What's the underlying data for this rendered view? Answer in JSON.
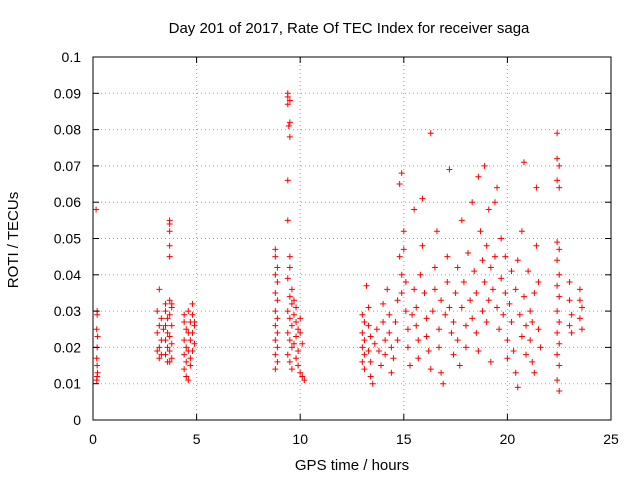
{
  "chart_data": {
    "type": "scatter",
    "title": "Day 201 of 2017, Rate Of TEC Index for receiver saga",
    "xlabel": "GPS time / hours",
    "ylabel": "ROTI / TECUs",
    "xlim": [
      0,
      25
    ],
    "ylim": [
      0,
      0.1
    ],
    "x_ticks": [
      0,
      5,
      10,
      15,
      20,
      25
    ],
    "x_tick_labels": [
      "0",
      "5",
      "10",
      "15",
      "20",
      "25"
    ],
    "y_ticks": [
      0,
      0.01,
      0.02,
      0.03,
      0.04,
      0.05,
      0.06,
      0.07,
      0.08,
      0.09,
      0.1
    ],
    "y_tick_labels": [
      "0",
      "0.01",
      "0.02",
      "0.03",
      "0.04",
      "0.05",
      "0.06",
      "0.07",
      "0.08",
      "0.09",
      "0.1"
    ],
    "grid": true,
    "marker": "+",
    "color": "#ff0000",
    "series": [
      {
        "points": [
          [
            0.15,
            0.058
          ],
          [
            0.2,
            0.03
          ],
          [
            0.2,
            0.029
          ],
          [
            0.18,
            0.025
          ],
          [
            0.22,
            0.023
          ],
          [
            0.2,
            0.02
          ],
          [
            0.18,
            0.017
          ],
          [
            0.2,
            0.015
          ],
          [
            0.22,
            0.013
          ],
          [
            0.2,
            0.012
          ],
          [
            0.18,
            0.011
          ],
          [
            3.2,
            0.036
          ],
          [
            3.1,
            0.03
          ],
          [
            3.3,
            0.028
          ],
          [
            3.2,
            0.026
          ],
          [
            3.1,
            0.024
          ],
          [
            3.3,
            0.022
          ],
          [
            3.2,
            0.02
          ],
          [
            3.1,
            0.019
          ],
          [
            3.3,
            0.018
          ],
          [
            3.2,
            0.017
          ],
          [
            3.4,
            0.025
          ],
          [
            3.5,
            0.032
          ],
          [
            3.5,
            0.03
          ],
          [
            3.6,
            0.028
          ],
          [
            3.5,
            0.026
          ],
          [
            3.6,
            0.024
          ],
          [
            3.5,
            0.022
          ],
          [
            3.6,
            0.02
          ],
          [
            3.5,
            0.018
          ],
          [
            3.6,
            0.016
          ],
          [
            3.7,
            0.055
          ],
          [
            3.7,
            0.054
          ],
          [
            3.7,
            0.052
          ],
          [
            3.7,
            0.048
          ],
          [
            3.7,
            0.045
          ],
          [
            3.7,
            0.033
          ],
          [
            3.8,
            0.031
          ],
          [
            3.7,
            0.029
          ],
          [
            3.8,
            0.026
          ],
          [
            3.7,
            0.023
          ],
          [
            3.8,
            0.021
          ],
          [
            3.7,
            0.019
          ],
          [
            3.8,
            0.017
          ],
          [
            3.7,
            0.016
          ],
          [
            3.8,
            0.032
          ],
          [
            4.4,
            0.029
          ],
          [
            4.4,
            0.027
          ],
          [
            4.5,
            0.025
          ],
          [
            4.4,
            0.022
          ],
          [
            4.5,
            0.02
          ],
          [
            4.4,
            0.018
          ],
          [
            4.5,
            0.016
          ],
          [
            4.4,
            0.014
          ],
          [
            4.5,
            0.012
          ],
          [
            4.6,
            0.03
          ],
          [
            4.7,
            0.027
          ],
          [
            4.6,
            0.024
          ],
          [
            4.7,
            0.022
          ],
          [
            4.6,
            0.019
          ],
          [
            4.7,
            0.017
          ],
          [
            4.8,
            0.032
          ],
          [
            4.8,
            0.029
          ],
          [
            4.9,
            0.027
          ],
          [
            4.8,
            0.024
          ],
          [
            4.9,
            0.021
          ],
          [
            4.8,
            0.019
          ],
          [
            4.9,
            0.026
          ],
          [
            4.7,
            0.015
          ],
          [
            4.6,
            0.011
          ],
          [
            8.8,
            0.047
          ],
          [
            8.8,
            0.045
          ],
          [
            8.9,
            0.042
          ],
          [
            8.8,
            0.04
          ],
          [
            8.9,
            0.038
          ],
          [
            8.8,
            0.035
          ],
          [
            8.9,
            0.033
          ],
          [
            8.8,
            0.03
          ],
          [
            8.9,
            0.028
          ],
          [
            8.8,
            0.026
          ],
          [
            8.9,
            0.024
          ],
          [
            8.8,
            0.022
          ],
          [
            8.9,
            0.02
          ],
          [
            8.8,
            0.018
          ],
          [
            8.9,
            0.016
          ],
          [
            8.8,
            0.014
          ],
          [
            9.4,
            0.09
          ],
          [
            9.4,
            0.089
          ],
          [
            9.5,
            0.088
          ],
          [
            9.4,
            0.087
          ],
          [
            9.5,
            0.082
          ],
          [
            9.45,
            0.081
          ],
          [
            9.5,
            0.078
          ],
          [
            9.4,
            0.066
          ],
          [
            9.4,
            0.055
          ],
          [
            9.5,
            0.045
          ],
          [
            9.5,
            0.042
          ],
          [
            9.4,
            0.039
          ],
          [
            9.6,
            0.036
          ],
          [
            9.5,
            0.034
          ],
          [
            9.6,
            0.032
          ],
          [
            9.4,
            0.03
          ],
          [
            9.5,
            0.028
          ],
          [
            9.6,
            0.026
          ],
          [
            9.4,
            0.024
          ],
          [
            9.5,
            0.022
          ],
          [
            9.6,
            0.02
          ],
          [
            9.4,
            0.018
          ],
          [
            9.5,
            0.016
          ],
          [
            9.6,
            0.014
          ],
          [
            9.7,
            0.033
          ],
          [
            9.8,
            0.031
          ],
          [
            9.7,
            0.029
          ],
          [
            9.8,
            0.027
          ],
          [
            9.9,
            0.025
          ],
          [
            9.8,
            0.023
          ],
          [
            9.7,
            0.021
          ],
          [
            9.9,
            0.019
          ],
          [
            9.8,
            0.017
          ],
          [
            9.9,
            0.015
          ],
          [
            10.0,
            0.028
          ],
          [
            10.0,
            0.024
          ],
          [
            10.1,
            0.021
          ],
          [
            10.0,
            0.013
          ],
          [
            10.1,
            0.012
          ],
          [
            10.2,
            0.011
          ],
          [
            13.0,
            0.029
          ],
          [
            13.1,
            0.027
          ],
          [
            13.0,
            0.024
          ],
          [
            13.1,
            0.022
          ],
          [
            13.0,
            0.02
          ],
          [
            13.1,
            0.018
          ],
          [
            13.0,
            0.016
          ],
          [
            13.1,
            0.014
          ],
          [
            13.2,
            0.037
          ],
          [
            13.3,
            0.031
          ],
          [
            13.3,
            0.026
          ],
          [
            13.4,
            0.023
          ],
          [
            13.3,
            0.019
          ],
          [
            13.4,
            0.016
          ],
          [
            13.4,
            0.012
          ],
          [
            13.5,
            0.01
          ],
          [
            13.6,
            0.021
          ],
          [
            13.7,
            0.025
          ],
          [
            13.8,
            0.019
          ],
          [
            13.9,
            0.015
          ],
          [
            14.0,
            0.032
          ],
          [
            14.0,
            0.027
          ],
          [
            14.1,
            0.022
          ],
          [
            14.1,
            0.018
          ],
          [
            14.2,
            0.036
          ],
          [
            14.3,
            0.029
          ],
          [
            14.3,
            0.024
          ],
          [
            14.4,
            0.02
          ],
          [
            14.4,
            0.013
          ],
          [
            14.5,
            0.017
          ],
          [
            14.6,
            0.027
          ],
          [
            14.7,
            0.033
          ],
          [
            14.7,
            0.022
          ],
          [
            14.8,
            0.045
          ],
          [
            14.9,
            0.04
          ],
          [
            14.9,
            0.035
          ],
          [
            14.8,
            0.065
          ],
          [
            14.9,
            0.068
          ],
          [
            15.0,
            0.052
          ],
          [
            15.0,
            0.047
          ],
          [
            15.1,
            0.038
          ],
          [
            15.1,
            0.03
          ],
          [
            15.2,
            0.025
          ],
          [
            15.2,
            0.02
          ],
          [
            15.3,
            0.015
          ],
          [
            15.4,
            0.029
          ],
          [
            15.5,
            0.058
          ],
          [
            15.5,
            0.036
          ],
          [
            15.6,
            0.031
          ],
          [
            15.6,
            0.026
          ],
          [
            15.7,
            0.022
          ],
          [
            15.7,
            0.017
          ],
          [
            15.8,
            0.04
          ],
          [
            15.9,
            0.061
          ],
          [
            15.9,
            0.048
          ],
          [
            16.0,
            0.035
          ],
          [
            16.1,
            0.028
          ],
          [
            16.1,
            0.023
          ],
          [
            16.2,
            0.019
          ],
          [
            16.3,
            0.079
          ],
          [
            16.3,
            0.014
          ],
          [
            16.4,
            0.03
          ],
          [
            16.5,
            0.042
          ],
          [
            16.5,
            0.036
          ],
          [
            16.6,
            0.052
          ],
          [
            16.7,
            0.025
          ],
          [
            16.7,
            0.02
          ],
          [
            16.8,
            0.033
          ],
          [
            16.8,
            0.013
          ],
          [
            16.9,
            0.01
          ],
          [
            17.0,
            0.029
          ],
          [
            17.1,
            0.045
          ],
          [
            17.1,
            0.038
          ],
          [
            17.2,
            0.069
          ],
          [
            17.2,
            0.031
          ],
          [
            17.3,
            0.024
          ],
          [
            17.4,
            0.018
          ],
          [
            17.4,
            0.027
          ],
          [
            17.5,
            0.035
          ],
          [
            17.6,
            0.042
          ],
          [
            17.6,
            0.022
          ],
          [
            17.7,
            0.015
          ],
          [
            17.8,
            0.031
          ],
          [
            17.8,
            0.055
          ],
          [
            17.9,
            0.038
          ],
          [
            18.0,
            0.026
          ],
          [
            18.0,
            0.02
          ],
          [
            18.1,
            0.046
          ],
          [
            18.2,
            0.033
          ],
          [
            18.3,
            0.028
          ],
          [
            18.3,
            0.06
          ],
          [
            18.4,
            0.041
          ],
          [
            18.5,
            0.035
          ],
          [
            18.5,
            0.024
          ],
          [
            18.6,
            0.067
          ],
          [
            18.6,
            0.019
          ],
          [
            18.7,
            0.052
          ],
          [
            18.8,
            0.044
          ],
          [
            18.8,
            0.03
          ],
          [
            18.9,
            0.07
          ],
          [
            18.9,
            0.038
          ],
          [
            19.0,
            0.048
          ],
          [
            19.0,
            0.027
          ],
          [
            19.1,
            0.058
          ],
          [
            19.1,
            0.033
          ],
          [
            19.2,
            0.042
          ],
          [
            19.2,
            0.016
          ],
          [
            19.3,
            0.036
          ],
          [
            19.4,
            0.06
          ],
          [
            19.4,
            0.045
          ],
          [
            19.5,
            0.031
          ],
          [
            19.5,
            0.064
          ],
          [
            19.6,
            0.025
          ],
          [
            19.7,
            0.05
          ],
          [
            19.7,
            0.039
          ],
          [
            19.8,
            0.029
          ],
          [
            19.9,
            0.045
          ],
          [
            19.9,
            0.035
          ],
          [
            20.0,
            0.022
          ],
          [
            20.0,
            0.017
          ],
          [
            20.1,
            0.032
          ],
          [
            20.2,
            0.041
          ],
          [
            20.2,
            0.027
          ],
          [
            20.3,
            0.019
          ],
          [
            20.4,
            0.036
          ],
          [
            20.4,
            0.013
          ],
          [
            20.5,
            0.009
          ],
          [
            20.5,
            0.044
          ],
          [
            20.6,
            0.029
          ],
          [
            20.7,
            0.052
          ],
          [
            20.7,
            0.023
          ],
          [
            20.8,
            0.071
          ],
          [
            20.8,
            0.034
          ],
          [
            20.9,
            0.026
          ],
          [
            20.9,
            0.018
          ],
          [
            21.0,
            0.041
          ],
          [
            21.1,
            0.03
          ],
          [
            21.1,
            0.022
          ],
          [
            21.2,
            0.027
          ],
          [
            21.2,
            0.016
          ],
          [
            21.3,
            0.035
          ],
          [
            21.3,
            0.013
          ],
          [
            21.4,
            0.064
          ],
          [
            21.4,
            0.048
          ],
          [
            21.5,
            0.038
          ],
          [
            21.5,
            0.025
          ],
          [
            21.6,
            0.02
          ],
          [
            22.4,
            0.079
          ],
          [
            22.4,
            0.072
          ],
          [
            22.5,
            0.07
          ],
          [
            22.4,
            0.066
          ],
          [
            22.5,
            0.064
          ],
          [
            22.4,
            0.049
          ],
          [
            22.5,
            0.047
          ],
          [
            22.4,
            0.044
          ],
          [
            22.5,
            0.04
          ],
          [
            22.4,
            0.037
          ],
          [
            22.5,
            0.034
          ],
          [
            22.4,
            0.03
          ],
          [
            22.5,
            0.027
          ],
          [
            22.4,
            0.024
          ],
          [
            22.5,
            0.021
          ],
          [
            22.4,
            0.018
          ],
          [
            22.5,
            0.015
          ],
          [
            22.4,
            0.011
          ],
          [
            22.5,
            0.008
          ],
          [
            23.0,
            0.038
          ],
          [
            23.0,
            0.033
          ],
          [
            23.1,
            0.029
          ],
          [
            23.0,
            0.026
          ],
          [
            23.1,
            0.024
          ],
          [
            23.5,
            0.036
          ],
          [
            23.5,
            0.033
          ],
          [
            23.6,
            0.031
          ],
          [
            23.5,
            0.028
          ],
          [
            23.6,
            0.025
          ]
        ]
      }
    ]
  }
}
